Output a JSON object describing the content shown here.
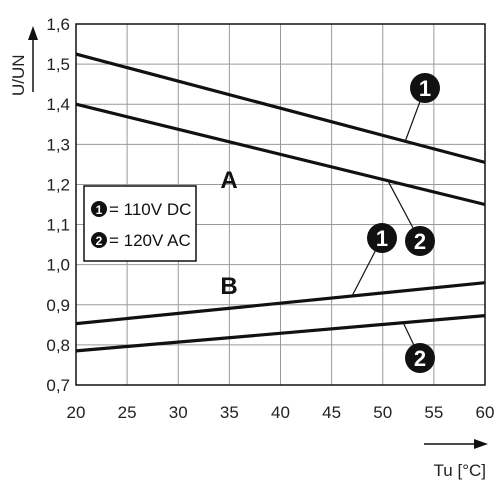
{
  "chart_data": {
    "type": "line",
    "xlabel": "Tu [°C]",
    "ylabel": "U/UN",
    "xlim": [
      20,
      60
    ],
    "ylim": [
      0.7,
      1.6
    ],
    "x_ticks": [
      "20",
      "25",
      "30",
      "35",
      "40",
      "45",
      "50",
      "55",
      "60"
    ],
    "y_ticks": [
      "0,7",
      "0,8",
      "0,9",
      "1,0",
      "1,1",
      "1,2",
      "1,3",
      "1,4",
      "1,5",
      "1,6"
    ],
    "grid": true,
    "region_labels": [
      "A",
      "B"
    ],
    "legend": [
      {
        "marker": "1",
        "text": "= 110V DC"
      },
      {
        "marker": "2",
        "text": "= 120V AC"
      }
    ],
    "series": [
      {
        "marker": "1",
        "group": "A",
        "x": [
          20,
          60
        ],
        "y": [
          1.525,
          1.255
        ]
      },
      {
        "marker": "2",
        "group": "A",
        "x": [
          20,
          60
        ],
        "y": [
          1.4,
          1.15
        ]
      },
      {
        "marker": "1",
        "group": "B",
        "x": [
          20,
          60
        ],
        "y": [
          0.853,
          0.955
        ]
      },
      {
        "marker": "2",
        "group": "B",
        "x": [
          20,
          60
        ],
        "y": [
          0.785,
          0.873
        ]
      }
    ]
  }
}
